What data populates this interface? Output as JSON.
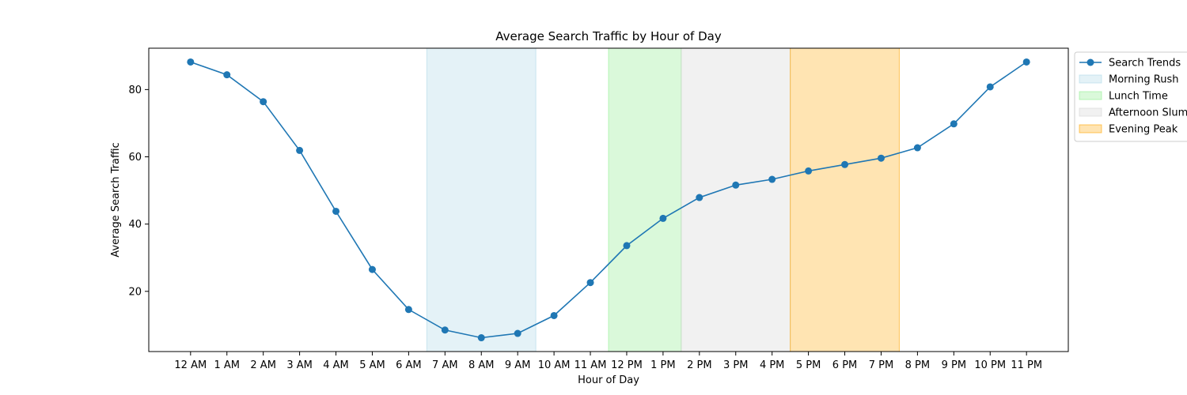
{
  "chart_data": {
    "type": "line",
    "title": "Average Search Traffic by Hour of Day",
    "xlabel": "Hour of Day",
    "ylabel": "Average Search Traffic",
    "categories": [
      "12 AM",
      "1 AM",
      "2 AM",
      "3 AM",
      "4 AM",
      "5 AM",
      "6 AM",
      "7 AM",
      "8 AM",
      "9 AM",
      "10 AM",
      "11 AM",
      "12 PM",
      "1 PM",
      "2 PM",
      "3 PM",
      "4 PM",
      "5 PM",
      "6 PM",
      "7 PM",
      "8 PM",
      "9 PM",
      "10 PM",
      "11 PM"
    ],
    "series": [
      {
        "name": "Search Trends",
        "color": "#1f77b4",
        "marker": "circle",
        "values": [
          88.2,
          84.4,
          76.4,
          61.9,
          43.8,
          26.5,
          14.6,
          8.5,
          6.2,
          7.5,
          12.8,
          22.6,
          33.6,
          41.7,
          47.9,
          51.6,
          53.3,
          55.8,
          57.7,
          59.6,
          62.7,
          69.8,
          80.8,
          88.2
        ]
      }
    ],
    "shaded_regions": [
      {
        "name": "Morning Rush",
        "start": 6.5,
        "end": 9.5,
        "color": "#add8e6",
        "opacity": 0.33
      },
      {
        "name": "Lunch Time",
        "start": 11.5,
        "end": 13.5,
        "color": "#90ee90",
        "opacity": 0.33
      },
      {
        "name": "Afternoon Slump",
        "start": 13.5,
        "end": 16.5,
        "color": "#d3d3d3",
        "opacity": 0.33
      },
      {
        "name": "Evening Peak",
        "start": 16.5,
        "end": 19.5,
        "color": "#ffa500",
        "opacity": 0.3
      }
    ],
    "yticks": [
      20,
      40,
      60,
      80
    ],
    "ylim": [
      2.1,
      92.3
    ],
    "xlim": [
      -1.15,
      24.15
    ],
    "grid": false,
    "legend_position": "upper right, outside plot"
  }
}
